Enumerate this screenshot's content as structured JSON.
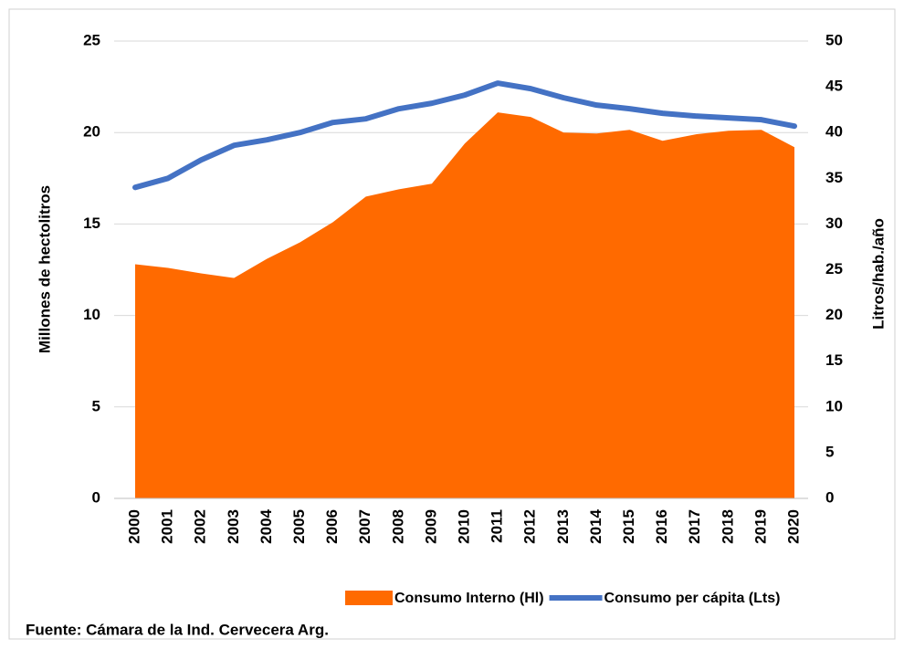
{
  "chart_data": {
    "type": "combo",
    "categories": [
      "2000",
      "2001",
      "2002",
      "2003",
      "2004",
      "2005",
      "2006",
      "2007",
      "2008",
      "2009",
      "2010",
      "2011",
      "2012",
      "2013",
      "2014",
      "2015",
      "2016",
      "2017",
      "2018",
      "2019",
      "2020"
    ],
    "series": [
      {
        "name": "Consumo Interno (Hl)",
        "type": "area",
        "color": "#ff6a00",
        "axis": "y",
        "values": [
          12.8,
          12.6,
          12.3,
          12.05,
          13.1,
          14.0,
          15.1,
          16.5,
          16.9,
          17.2,
          19.4,
          21.1,
          20.85,
          20.0,
          19.95,
          20.15,
          19.55,
          19.9,
          20.1,
          20.15,
          19.2
        ]
      },
      {
        "name": "Consumo per cápita (Lts)",
        "type": "line",
        "color": "#4472c4",
        "axis": "y2",
        "values": [
          34,
          35,
          37,
          38.6,
          39.2,
          40,
          41.1,
          41.5,
          42.6,
          43.2,
          44.1,
          45.4,
          44.8,
          43.8,
          43,
          42.6,
          42.1,
          41.8,
          41.6,
          41.4,
          40.7
        ]
      }
    ],
    "ylabel": "Millones de hectolitros",
    "y2label": "Litros/hab./año",
    "ylim": [
      0,
      25
    ],
    "yticks": [
      0,
      5,
      10,
      15,
      20,
      25
    ],
    "y2lim": [
      0,
      50
    ],
    "y2ticks": [
      0,
      5,
      10,
      15,
      20,
      25,
      30,
      35,
      40,
      45,
      50
    ],
    "grid": true,
    "legend": "bottom",
    "source": "Fuente: Cámara de la Ind. Cervecera Arg."
  }
}
